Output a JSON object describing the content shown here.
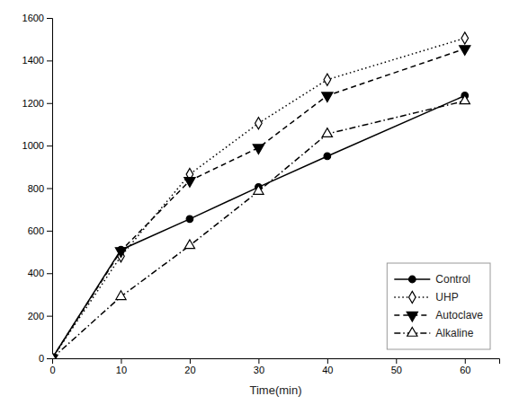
{
  "chart_data": {
    "type": "line",
    "x_label": "Time(min)",
    "x": [
      0,
      10,
      20,
      30,
      40,
      60
    ],
    "series": [
      {
        "name": "Control",
        "color": "#000000",
        "marker": "circle",
        "line_style": "solid",
        "values": [
          0,
          510,
          655,
          805,
          950,
          1235
        ]
      },
      {
        "name": "UHP",
        "color": "#000000",
        "marker": "diamond-open",
        "line_style": "dotted",
        "values": [
          0,
          480,
          865,
          1105,
          1310,
          1505
        ]
      },
      {
        "name": "Autoclave",
        "color": "#000000",
        "marker": "triangle-down",
        "line_style": "dashed",
        "values": [
          0,
          505,
          835,
          990,
          1235,
          1455
        ]
      },
      {
        "name": "Alkaline",
        "color": "#000000",
        "marker": "triangle-up-open",
        "line_style": "dashdot",
        "values": [
          0,
          290,
          530,
          785,
          1055,
          1210
        ]
      }
    ],
    "xlim": [
      0,
      65
    ],
    "xticks": [
      0,
      10,
      20,
      30,
      40,
      50,
      60
    ],
    "ylim": [
      0,
      1600
    ],
    "yticks": [
      0,
      200,
      400,
      600,
      800,
      1000,
      1200,
      1400,
      1600
    ],
    "grid": false,
    "legend": "lower right"
  }
}
